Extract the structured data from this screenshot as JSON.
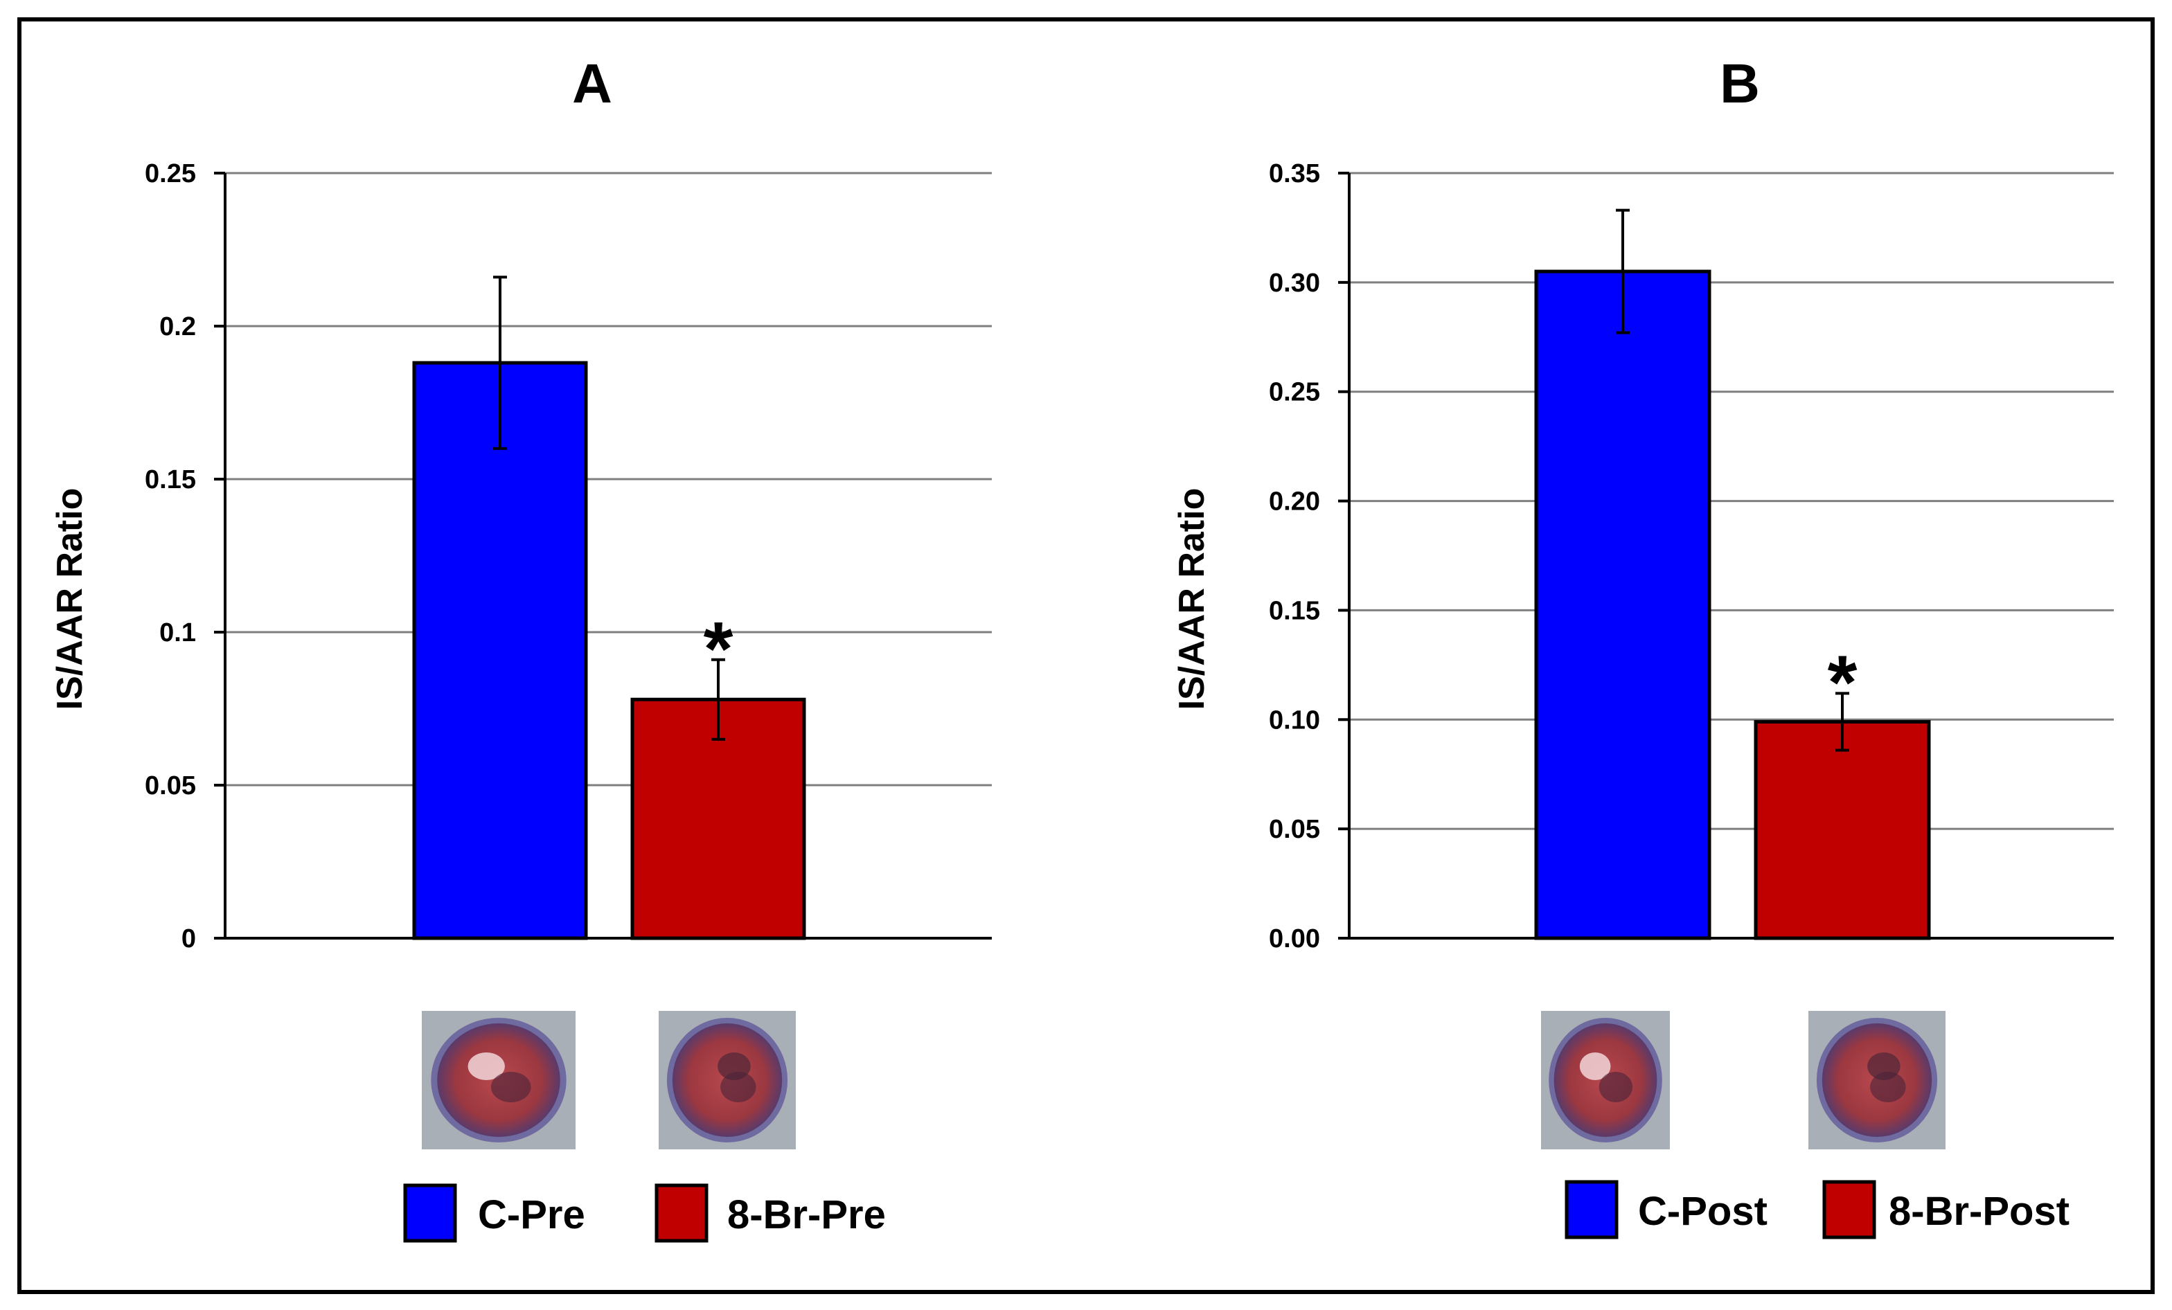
{
  "chart_data": [
    {
      "type": "bar",
      "panel": "A",
      "ylabel": "IS/AAR Ratio",
      "ylim": [
        0,
        0.25
      ],
      "y_ticks": [
        "0",
        "0.05",
        "0.1",
        "0.15",
        "0.2",
        "0.25"
      ],
      "grid": true,
      "categories": [
        "C-Pre",
        "8-Br-Pre"
      ],
      "values": [
        0.188,
        0.078
      ],
      "errors": [
        0.028,
        0.013
      ],
      "colors": [
        "#0000ff",
        "#c00000"
      ],
      "annotations": [
        {
          "category": "8-Br-Pre",
          "text": "*"
        }
      ],
      "legend": {
        "position": "bottom",
        "entries": [
          "C-Pre",
          "8-Br-Pre"
        ]
      },
      "images": [
        "heart-slice-C-Pre",
        "heart-slice-8-Br-Pre"
      ]
    },
    {
      "type": "bar",
      "panel": "B",
      "ylabel": "IS/AAR Ratio",
      "ylim": [
        0,
        0.35
      ],
      "y_ticks": [
        "0.00",
        "0.05",
        "0.10",
        "0.15",
        "0.20",
        "0.25",
        "0.30",
        "0.35"
      ],
      "grid": true,
      "categories": [
        "C-Post",
        "8-Br-Post"
      ],
      "values": [
        0.305,
        0.099
      ],
      "errors": [
        0.028,
        0.013
      ],
      "colors": [
        "#0000ff",
        "#c00000"
      ],
      "annotations": [
        {
          "category": "8-Br-Post",
          "text": "*"
        }
      ],
      "legend": {
        "position": "bottom",
        "entries": [
          "C-Post",
          "8-Br-Post"
        ]
      },
      "images": [
        "heart-slice-C-Post",
        "heart-slice-8-Br-Post"
      ]
    }
  ]
}
